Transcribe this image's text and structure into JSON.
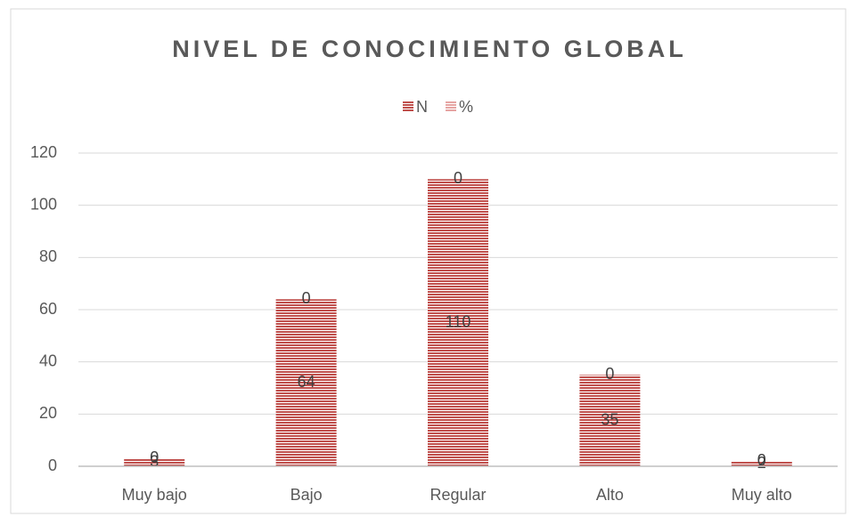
{
  "chart_data": {
    "type": "stacked_bar",
    "title": "NIVEL DE CONOCIMIENTO GLOBAL",
    "categories": [
      "Muy bajo",
      "Bajo",
      "Regular",
      "Alto",
      "Muy alto"
    ],
    "series": [
      {
        "name": "N",
        "color": "#c0504d",
        "values": [
          3,
          64,
          110,
          35,
          2
        ]
      },
      {
        "name": "%",
        "color": "#e6a5a3",
        "values": [
          0,
          0,
          0,
          0,
          0
        ]
      }
    ],
    "ylim": [
      0,
      120
    ],
    "yticks": [
      0,
      20,
      40,
      60,
      80,
      100,
      120
    ],
    "grid": true,
    "legend": "top"
  }
}
